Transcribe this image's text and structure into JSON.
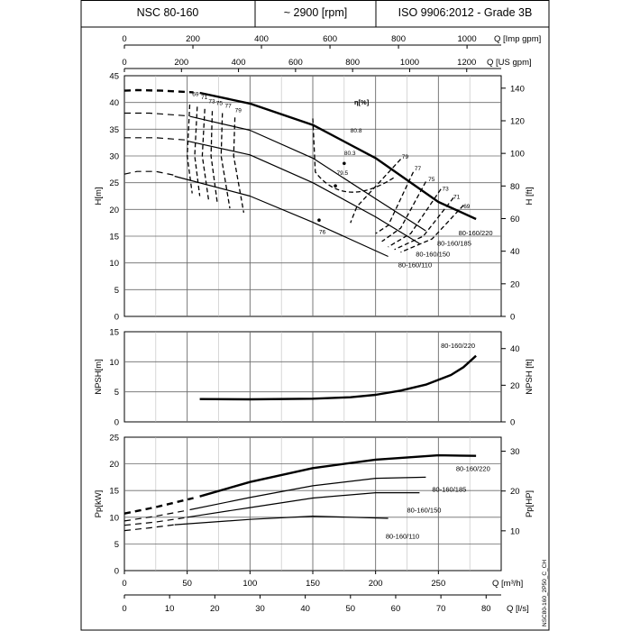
{
  "header": {
    "model": "NSC 80-160",
    "speed": "~ 2900 [rpm]",
    "standard": "ISO 9906:2012 - Grade 3B"
  },
  "footer_code": "NSC80-160_2P50_C_CH",
  "chart_data": {
    "type": "line",
    "top_axes": {
      "imp_gpm": {
        "label": "Q [Imp gpm]",
        "ticks": [
          0,
          200,
          400,
          600,
          800,
          1000
        ],
        "max_label": "1000"
      },
      "us_gpm": {
        "label": "Q [US gpm]",
        "ticks": [
          0,
          200,
          400,
          600,
          800,
          1000,
          1200
        ]
      }
    },
    "bottom_axes": {
      "m3h": {
        "label": "Q [m³/h]",
        "ticks": [
          0,
          50,
          100,
          150,
          200,
          250
        ],
        "xlim": [
          0,
          300
        ]
      },
      "ls": {
        "label": "Q [l/s]",
        "ticks": [
          0,
          10,
          20,
          30,
          40,
          50,
          60,
          70,
          80
        ]
      }
    },
    "panels": [
      {
        "id": "head",
        "ylabel": "H[m]",
        "ylim": [
          0,
          45
        ],
        "yticks": [
          0,
          5,
          10,
          15,
          20,
          25,
          30,
          35,
          40,
          45
        ],
        "ylabel_right": "H [ft]",
        "yticks_right": [
          0,
          20,
          40,
          60,
          80,
          100,
          120,
          140
        ],
        "series": [
          {
            "name": "80-160/220",
            "x": [
              60,
              100,
              150,
              200,
              250,
              280
            ],
            "y": [
              41.8,
              39.8,
              35.8,
              29.6,
              21.4,
              18.2
            ],
            "dashed_x": [
              0,
              10,
              30,
              55
            ],
            "dashed_y": [
              42.2,
              42.3,
              42.2,
              41.9
            ]
          },
          {
            "name": "80-160/185",
            "x": [
              52,
              100,
              150,
              200,
              240
            ],
            "y": [
              37.4,
              34.8,
              29.6,
              22.0,
              16.0
            ],
            "dashed_x": [
              0,
              20,
              50
            ],
            "dashed_y": [
              38.0,
              38.0,
              37.5
            ]
          },
          {
            "name": "80-160/150",
            "x": [
              50,
              100,
              150,
              200,
              235
            ],
            "y": [
              32.8,
              30.2,
              25.0,
              18.6,
              13.6
            ],
            "dashed_x": [
              0,
              25,
              48
            ],
            "dashed_y": [
              33.4,
              33.4,
              33.0
            ]
          },
          {
            "name": "80-160/110",
            "x": [
              40,
              100,
              150,
              210
            ],
            "y": [
              26.2,
              22.5,
              17.6,
              11.2
            ],
            "dashed_x": [
              0,
              10,
              25,
              40
            ],
            "dashed_y": [
              26.6,
              27.1,
              27.1,
              26.4
            ]
          }
        ],
        "efficiency_label": "η[%]",
        "efficiency_contours": [
          "69",
          "71",
          "73",
          "75",
          "77",
          "79",
          "80.8",
          "80.3",
          "79.5",
          "76"
        ],
        "efficiency_right_labels": [
          "79",
          "77",
          "75",
          "73",
          "71",
          "69"
        ],
        "legend_labels": [
          "80-160/220",
          "80-160/185",
          "80-160/150",
          "80-160/110"
        ]
      },
      {
        "id": "npsh",
        "ylabel": "NPSH[m]",
        "ylim": [
          0,
          15
        ],
        "yticks": [
          0,
          5,
          10,
          15
        ],
        "ylabel_right": "NPSH [ft]",
        "yticks_right": [
          0,
          20,
          40
        ],
        "series": [
          {
            "name": "80-160/220",
            "x": [
              60,
              100,
              150,
              180,
              200,
              220,
              240,
              260,
              270,
              280
            ],
            "y": [
              3.8,
              3.75,
              3.85,
              4.1,
              4.5,
              5.2,
              6.2,
              7.8,
              9.1,
              11.0
            ]
          }
        ]
      },
      {
        "id": "power",
        "ylabel": "Pp[kW]",
        "ylim": [
          0,
          25
        ],
        "yticks": [
          0,
          5,
          10,
          15,
          20,
          25
        ],
        "ylabel_right": "Pp[HP]",
        "yticks_right": [
          10,
          20,
          30
        ],
        "series": [
          {
            "name": "80-160/220",
            "x": [
              60,
              100,
              150,
              200,
              250,
              280
            ],
            "y": [
              13.9,
              16.6,
              19.2,
              20.8,
              21.6,
              21.5
            ],
            "dashed_x": [
              0,
              25,
              55
            ],
            "dashed_y": [
              10.7,
              11.9,
              13.6
            ]
          },
          {
            "name": "80-160/185",
            "x": [
              52,
              100,
              150,
              200,
              240
            ],
            "y": [
              11.4,
              13.7,
              15.9,
              17.3,
              17.5
            ],
            "dashed_x": [
              0,
              25,
              50
            ],
            "dashed_y": [
              9.3,
              10.2,
              11.3
            ]
          },
          {
            "name": "80-160/150",
            "x": [
              50,
              100,
              150,
              200,
              235
            ],
            "y": [
              10.0,
              11.8,
              13.6,
              14.6,
              14.6
            ],
            "dashed_x": [
              0,
              25,
              48
            ],
            "dashed_y": [
              8.5,
              9.1,
              9.9
            ]
          },
          {
            "name": "80-160/110",
            "x": [
              40,
              100,
              150,
              210
            ],
            "y": [
              8.6,
              9.6,
              10.2,
              9.8
            ],
            "dashed_x": [
              0,
              20,
              40
            ],
            "dashed_y": [
              7.5,
              8.0,
              8.6
            ]
          }
        ]
      }
    ]
  }
}
